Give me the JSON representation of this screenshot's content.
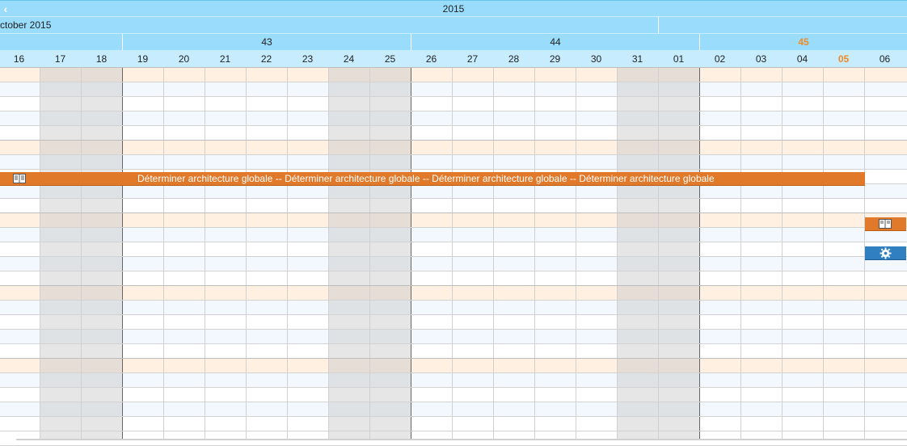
{
  "year_label": "2015",
  "month_label": "ctober 2015",
  "weeks": [
    {
      "label": "43",
      "current": false
    },
    {
      "label": "44",
      "current": false
    },
    {
      "label": "45",
      "current": true
    }
  ],
  "days": [
    {
      "label": "16",
      "weekend": false,
      "today": false
    },
    {
      "label": "17",
      "weekend": true,
      "today": false
    },
    {
      "label": "18",
      "weekend": true,
      "today": false
    },
    {
      "label": "19",
      "weekend": false,
      "today": false
    },
    {
      "label": "20",
      "weekend": false,
      "today": false
    },
    {
      "label": "21",
      "weekend": false,
      "today": false
    },
    {
      "label": "22",
      "weekend": false,
      "today": false
    },
    {
      "label": "23",
      "weekend": false,
      "today": false
    },
    {
      "label": "24",
      "weekend": true,
      "today": false
    },
    {
      "label": "25",
      "weekend": true,
      "today": false
    },
    {
      "label": "26",
      "weekend": false,
      "today": false
    },
    {
      "label": "27",
      "weekend": false,
      "today": false
    },
    {
      "label": "28",
      "weekend": false,
      "today": false
    },
    {
      "label": "29",
      "weekend": false,
      "today": false
    },
    {
      "label": "30",
      "weekend": false,
      "today": false
    },
    {
      "label": "31",
      "weekend": true,
      "today": false
    },
    {
      "label": "01",
      "weekend": true,
      "today": false
    },
    {
      "label": "02",
      "weekend": false,
      "today": false
    },
    {
      "label": "03",
      "weekend": false,
      "today": false
    },
    {
      "label": "04",
      "weekend": false,
      "today": false
    },
    {
      "label": "05",
      "weekend": false,
      "today": true
    },
    {
      "label": "06",
      "weekend": false,
      "today": false
    }
  ],
  "task": {
    "label": "Déterminer architecture globale -- Déterminer architecture globale -- Déterminer architecture globale -- Déterminer architecture globale",
    "icon": "book-icon"
  },
  "icons": {
    "back": "chevron-left-icon",
    "milestone_task": "book-icon",
    "milestone_gear": "gear-icon"
  },
  "colors": {
    "header": "#99dcfb",
    "day_header": "#c6ecfd",
    "task": "#e07a2a",
    "gear_task": "#2f7fc1",
    "today_text": "#f08a24",
    "weekend": "#e9e9e9",
    "group_band": "#fff0e2"
  }
}
